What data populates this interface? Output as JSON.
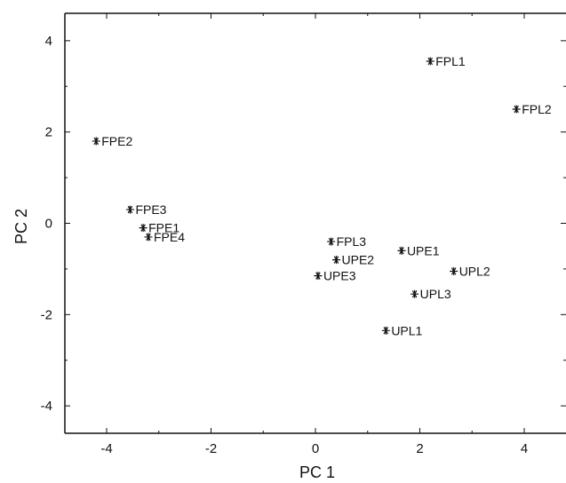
{
  "chart_data": {
    "type": "scatter",
    "title": "",
    "xlabel": "PC 1",
    "ylabel": "PC 2",
    "xlim": [
      -4.8,
      4.8
    ],
    "ylim": [
      -4.6,
      4.6
    ],
    "xticks": [
      -4,
      -2,
      0,
      2,
      4
    ],
    "xtick_labels": [
      "-4",
      "-2",
      "0",
      "2",
      "4"
    ],
    "yticks": [
      -4,
      -2,
      0,
      2,
      4
    ],
    "ytick_labels": [
      "-4",
      "-2",
      "0",
      "2",
      "4"
    ],
    "minor_xticks": [
      -3,
      -1,
      1,
      3
    ],
    "minor_yticks": [
      -3,
      -1,
      1,
      3
    ],
    "grid": false,
    "marker": "asterisk",
    "color": "#111111",
    "points": [
      {
        "label": "FPL1",
        "x": 2.2,
        "y": 3.55
      },
      {
        "label": "FPL2",
        "x": 3.85,
        "y": 2.5
      },
      {
        "label": "FPE2",
        "x": -4.2,
        "y": 1.8
      },
      {
        "label": "FPE3",
        "x": -3.55,
        "y": 0.3
      },
      {
        "label": "FPE1",
        "x": -3.3,
        "y": -0.1
      },
      {
        "label": "FPE4",
        "x": -3.2,
        "y": -0.3
      },
      {
        "label": "FPL3",
        "x": 0.3,
        "y": -0.4
      },
      {
        "label": "UPE1",
        "x": 1.65,
        "y": -0.6
      },
      {
        "label": "UPE2",
        "x": 0.4,
        "y": -0.8
      },
      {
        "label": "UPL2",
        "x": 2.65,
        "y": -1.05
      },
      {
        "label": "UPE3",
        "x": 0.05,
        "y": -1.15
      },
      {
        "label": "UPL3",
        "x": 1.9,
        "y": -1.55
      },
      {
        "label": "UPL1",
        "x": 1.35,
        "y": -2.35
      }
    ]
  }
}
